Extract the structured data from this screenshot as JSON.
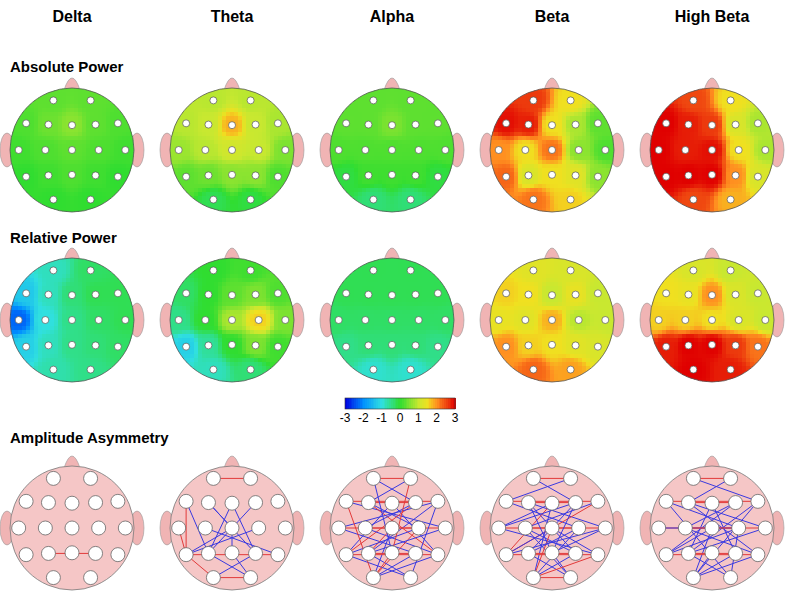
{
  "chart_data": {
    "type": "topomap",
    "columns": [
      "Delta",
      "Theta",
      "Alpha",
      "Beta",
      "High Beta"
    ],
    "maps": [
      {
        "title": "Absolute Power",
        "values": [
          [
            0.3,
            0.3,
            0.2,
            0.4,
            0.6,
            0.3,
            0.2,
            0.1,
            0.2,
            0.3,
            0.2,
            0.1,
            0,
            0.1,
            0.2,
            0.1,
            0,
            0,
            0
          ],
          [
            0.9,
            0.9,
            0.9,
            1.0,
            1.8,
            1.0,
            0.8,
            0.7,
            0.9,
            1.1,
            1.0,
            0.5,
            0.3,
            0.4,
            0.6,
            0.6,
            0.2,
            -0.2,
            -0.1
          ],
          [
            0.3,
            0.3,
            0.3,
            0.3,
            0.5,
            0.3,
            0.3,
            0.2,
            0.2,
            0.2,
            0.2,
            0.2,
            -0.1,
            0.1,
            0.1,
            0.1,
            -0.1,
            -0.4,
            -0.4
          ],
          [
            2.6,
            1.5,
            2.9,
            2.8,
            1.5,
            0.8,
            0.3,
            2.0,
            1.5,
            2.2,
            0.6,
            0.2,
            2.3,
            1.2,
            1.5,
            1.3,
            0.6,
            2.2,
            1.6
          ],
          [
            2.5,
            1.5,
            3,
            2.8,
            2.6,
            1.2,
            0.8,
            3,
            2.8,
            2.9,
            1.5,
            0.8,
            3,
            3,
            3,
            2.0,
            1.2,
            2.5,
            1.8
          ]
        ]
      },
      {
        "title": "Relative Power",
        "values": [
          [
            -0.8,
            -0.3,
            -1.3,
            -0.8,
            -0.4,
            -0.2,
            -0.2,
            -2.3,
            -1.0,
            -0.5,
            -0.3,
            -0.2,
            -1.2,
            -0.8,
            -0.5,
            -0.4,
            -0.3,
            -0.7,
            -0.5
          ],
          [
            0,
            0.1,
            -0.3,
            0,
            0.3,
            0.5,
            0.2,
            -0.5,
            0,
            0.8,
            1.6,
            0.5,
            -1.2,
            -0.6,
            0,
            0.5,
            0.1,
            -0.8,
            -0.4
          ],
          [
            -0.2,
            -0.2,
            -0.2,
            -0.2,
            -0.2,
            -0.2,
            -0.2,
            -0.3,
            -0.3,
            -0.3,
            -0.3,
            -0.3,
            -0.5,
            -0.4,
            -0.4,
            -0.4,
            -0.5,
            -0.9,
            -0.9
          ],
          [
            1.3,
            1.2,
            1.6,
            1.5,
            1.0,
            1.4,
            1.0,
            1.4,
            1.3,
            1.8,
            0.9,
            1.0,
            2.0,
            1.6,
            1.5,
            1.3,
            1.2,
            2.3,
            1.9
          ],
          [
            1.2,
            1.0,
            1.5,
            1.4,
            2.0,
            1.2,
            1.0,
            1.6,
            1.6,
            1.5,
            1.2,
            1.0,
            2.8,
            3,
            3,
            2.6,
            2.2,
            3,
            2.8
          ]
        ]
      }
    ],
    "colorbar": {
      "range": [
        -3,
        3
      ],
      "ticks": [
        -3,
        -2,
        -1,
        0,
        1,
        2,
        3
      ]
    },
    "asymmetry": {
      "title": "Amplitude Asymmetry",
      "colors": {
        "positive": "#e23a3a",
        "negative": "#3a3ae0"
      },
      "links": [
        [
          [
            13,
            15,
            1
          ]
        ],
        [
          [
            0,
            1,
            1
          ],
          [
            2,
            12,
            1
          ],
          [
            2,
            13,
            -1
          ],
          [
            7,
            12,
            1
          ],
          [
            3,
            9,
            -1
          ],
          [
            4,
            13,
            -1
          ],
          [
            4,
            15,
            -1
          ],
          [
            5,
            13,
            -1
          ],
          [
            9,
            14,
            -1
          ],
          [
            8,
            16,
            -1
          ],
          [
            10,
            12,
            -1
          ],
          [
            12,
            16,
            1
          ],
          [
            13,
            18,
            -1
          ],
          [
            14,
            18,
            -1
          ],
          [
            15,
            17,
            -1
          ],
          [
            12,
            17,
            1
          ],
          [
            17,
            18,
            1
          ],
          [
            3,
            15,
            -1
          ],
          [
            9,
            12,
            -1
          ]
        ],
        [
          [
            0,
            1,
            1
          ],
          [
            0,
            5,
            -1
          ],
          [
            1,
            3,
            -1
          ],
          [
            2,
            6,
            1
          ],
          [
            2,
            11,
            -1
          ],
          [
            3,
            5,
            1
          ],
          [
            3,
            10,
            -1
          ],
          [
            3,
            16,
            1
          ],
          [
            4,
            12,
            -1
          ],
          [
            4,
            16,
            -1
          ],
          [
            5,
            8,
            -1
          ],
          [
            5,
            12,
            1
          ],
          [
            6,
            7,
            -1
          ],
          [
            6,
            13,
            -1
          ],
          [
            7,
            11,
            1
          ],
          [
            7,
            15,
            -1
          ],
          [
            8,
            10,
            1
          ],
          [
            8,
            16,
            -1
          ],
          [
            9,
            13,
            1
          ],
          [
            9,
            17,
            -1
          ],
          [
            10,
            12,
            -1
          ],
          [
            10,
            17,
            1
          ],
          [
            11,
            13,
            -1
          ],
          [
            12,
            16,
            1
          ],
          [
            12,
            18,
            -1
          ],
          [
            13,
            15,
            1
          ],
          [
            13,
            18,
            -1
          ],
          [
            14,
            17,
            1
          ],
          [
            15,
            17,
            -1
          ],
          [
            16,
            17,
            -1
          ],
          [
            2,
            17,
            1
          ],
          [
            6,
            18,
            -1
          ],
          [
            0,
            14,
            -1
          ],
          [
            1,
            14,
            1
          ]
        ],
        [
          [
            0,
            1,
            1
          ],
          [
            0,
            5,
            -1
          ],
          [
            1,
            2,
            -1
          ],
          [
            2,
            6,
            1
          ],
          [
            2,
            10,
            -1
          ],
          [
            3,
            5,
            1
          ],
          [
            3,
            11,
            -1
          ],
          [
            3,
            15,
            -1
          ],
          [
            4,
            7,
            -1
          ],
          [
            4,
            12,
            1
          ],
          [
            4,
            17,
            -1
          ],
          [
            5,
            7,
            -1
          ],
          [
            5,
            13,
            -1
          ],
          [
            6,
            8,
            -1
          ],
          [
            6,
            12,
            1
          ],
          [
            7,
            11,
            1
          ],
          [
            7,
            16,
            -1
          ],
          [
            8,
            10,
            1
          ],
          [
            8,
            15,
            -1
          ],
          [
            8,
            18,
            -1
          ],
          [
            9,
            12,
            -1
          ],
          [
            9,
            16,
            -1
          ],
          [
            9,
            17,
            1
          ],
          [
            10,
            13,
            -1
          ],
          [
            10,
            17,
            -1
          ],
          [
            11,
            12,
            -1
          ],
          [
            11,
            14,
            -1
          ],
          [
            12,
            16,
            1
          ],
          [
            13,
            15,
            1
          ],
          [
            13,
            18,
            -1
          ],
          [
            14,
            18,
            -1
          ],
          [
            15,
            17,
            -1
          ],
          [
            16,
            17,
            1
          ],
          [
            17,
            18,
            1
          ],
          [
            3,
            14,
            -1
          ],
          [
            5,
            14,
            -1
          ]
        ],
        [
          [
            0,
            1,
            1
          ],
          [
            0,
            6,
            -1
          ],
          [
            1,
            3,
            -1
          ],
          [
            2,
            6,
            1
          ],
          [
            2,
            10,
            -1
          ],
          [
            3,
            5,
            1
          ],
          [
            3,
            11,
            -1
          ],
          [
            3,
            16,
            -1
          ],
          [
            4,
            13,
            -1
          ],
          [
            4,
            15,
            -1
          ],
          [
            5,
            8,
            -1
          ],
          [
            5,
            12,
            -1
          ],
          [
            6,
            13,
            -1
          ],
          [
            7,
            11,
            1
          ],
          [
            7,
            10,
            -1
          ],
          [
            8,
            10,
            1
          ],
          [
            8,
            16,
            -1
          ],
          [
            9,
            12,
            -1
          ],
          [
            9,
            17,
            -1
          ],
          [
            10,
            12,
            -1
          ],
          [
            10,
            18,
            -1
          ],
          [
            11,
            13,
            -1
          ],
          [
            12,
            16,
            1
          ],
          [
            13,
            15,
            1
          ],
          [
            13,
            18,
            -1
          ],
          [
            14,
            17,
            -1
          ],
          [
            15,
            17,
            -1
          ],
          [
            16,
            17,
            -1
          ],
          [
            2,
            18,
            -1
          ],
          [
            6,
            17,
            -1
          ]
        ]
      ]
    }
  }
}
